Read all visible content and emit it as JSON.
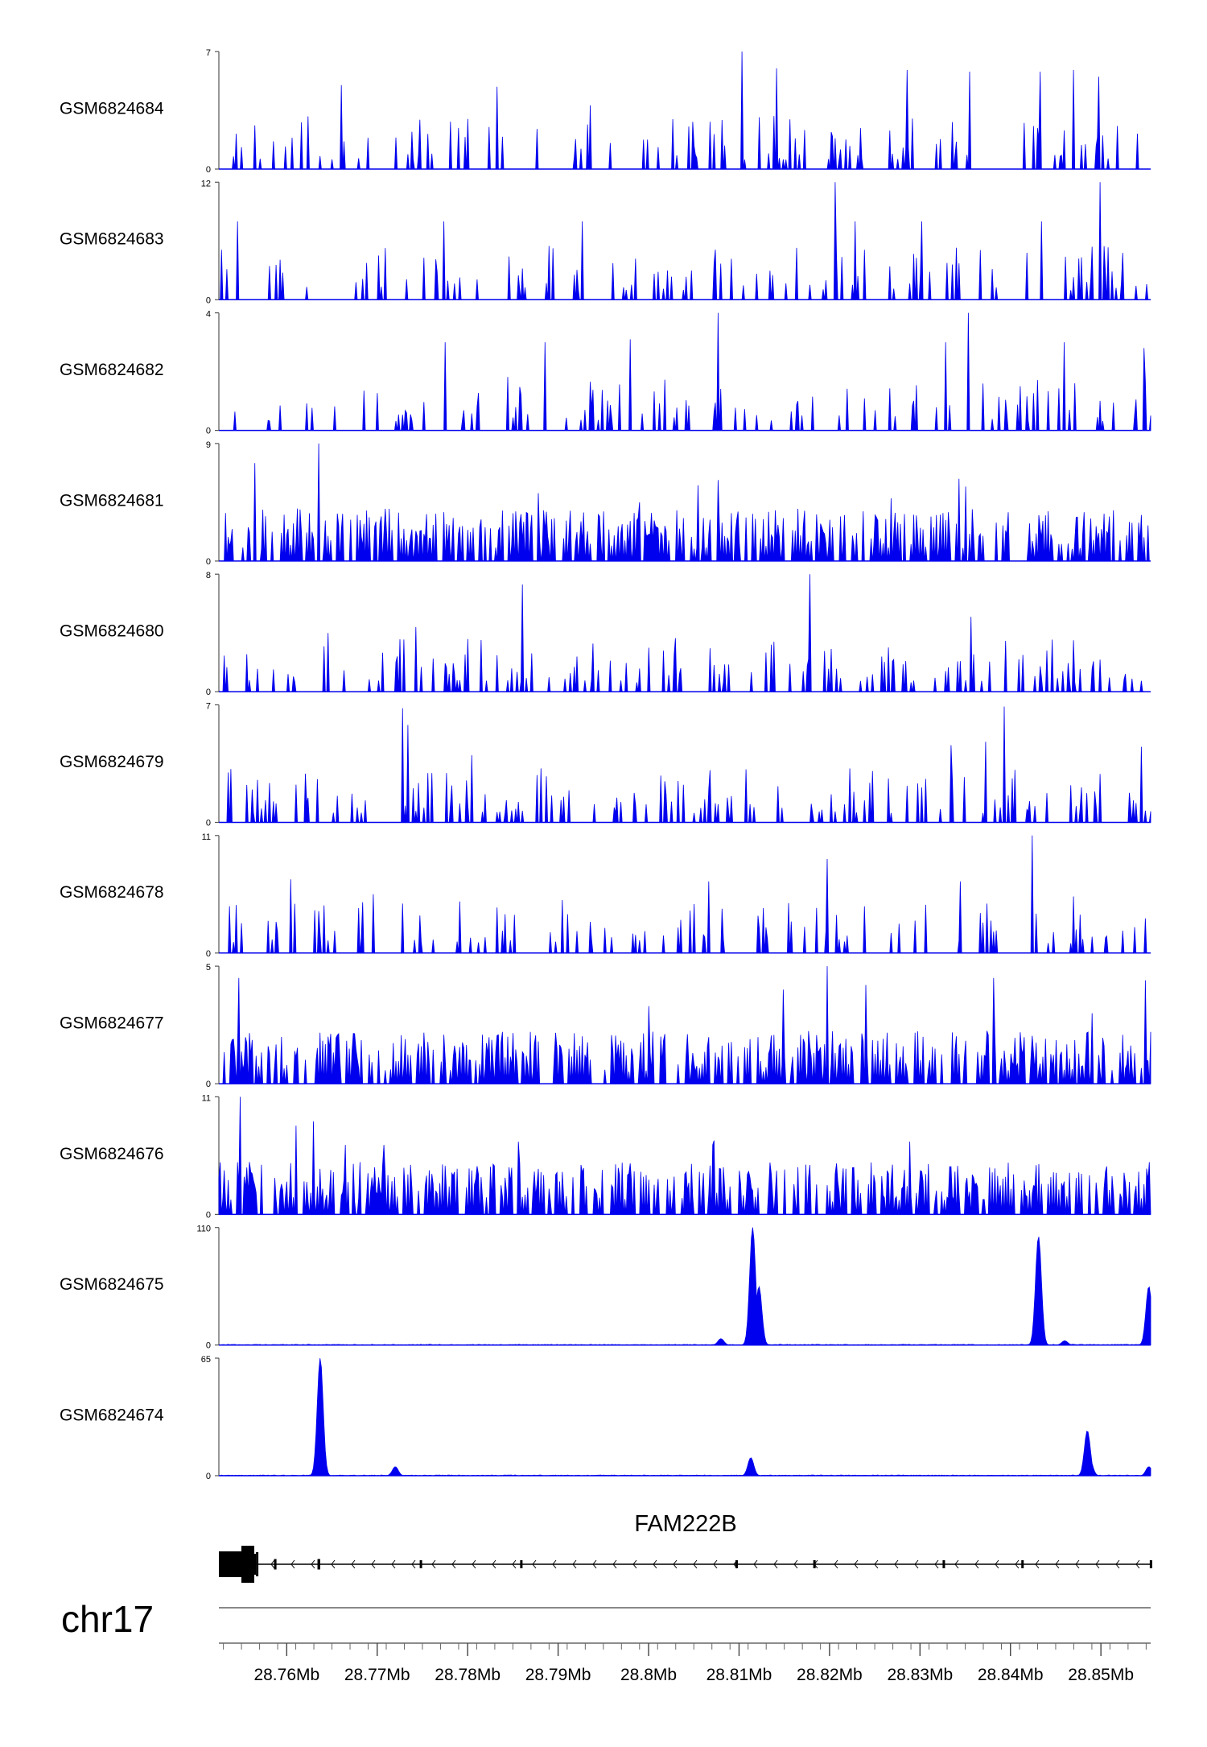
{
  "chart_data": {
    "type": "area",
    "title": "",
    "xlabel": "",
    "ylabel": "",
    "genome": "hg",
    "chromosome": "chr17",
    "xlim": [
      28.7525,
      28.8555
    ],
    "x_unit": "Mb",
    "x_ticks": [
      "28.76Mb",
      "28.77Mb",
      "28.78Mb",
      "28.79Mb",
      "28.8Mb",
      "28.81Mb",
      "28.82Mb",
      "28.83Mb",
      "28.84Mb",
      "28.85Mb"
    ],
    "x_tick_values": [
      28.76,
      28.77,
      28.78,
      28.79,
      28.8,
      28.81,
      28.82,
      28.83,
      28.84,
      28.85
    ],
    "color": "#0000ee",
    "tracks": [
      {
        "name": "GSM6824684",
        "ymax": 7,
        "ymin_label": "0",
        "ymax_label": "7",
        "profile": "sparse",
        "peaks": [
          [
            28.7935,
            3.8
          ],
          [
            28.8103,
            7.0
          ],
          [
            28.8142,
            6.0
          ],
          [
            28.8285,
            5.9
          ],
          [
            28.8355,
            5.8
          ],
          [
            28.8433,
            5.8
          ],
          [
            28.8469,
            5.9
          ],
          [
            28.8498,
            5.5
          ],
          [
            28.766,
            5.0
          ],
          [
            28.7832,
            4.9
          ]
        ]
      },
      {
        "name": "GSM6824683",
        "ymax": 12,
        "ymin_label": "0",
        "ymax_label": "12",
        "profile": "sparse",
        "peaks": [
          [
            28.8207,
            12.0
          ],
          [
            28.8499,
            12.0
          ],
          [
            28.7927,
            8.0
          ],
          [
            28.8302,
            8.0
          ],
          [
            28.8434,
            8.0
          ],
          [
            28.8229,
            8.0
          ],
          [
            28.7773,
            8.0
          ],
          [
            28.7545,
            8.0
          ]
        ]
      },
      {
        "name": "GSM6824682",
        "ymax": 4,
        "ymin_label": "0",
        "ymax_label": "4",
        "profile": "sparse",
        "peaks": [
          [
            28.8354,
            4.0
          ],
          [
            28.8077,
            4.0
          ],
          [
            28.798,
            3.1
          ],
          [
            28.8328,
            3.0
          ],
          [
            28.7775,
            3.0
          ],
          [
            28.7885,
            3.0
          ],
          [
            28.8459,
            3.0
          ],
          [
            28.8547,
            2.8
          ]
        ]
      },
      {
        "name": "GSM6824681",
        "ymax": 9,
        "ymin_label": "0",
        "ymax_label": "9",
        "profile": "dense",
        "peaks": [
          [
            28.7635,
            9.0
          ],
          [
            28.7565,
            7.5
          ],
          [
            28.8077,
            6.2
          ],
          [
            28.8343,
            6.3
          ],
          [
            28.835,
            5.7
          ],
          [
            28.8055,
            5.8
          ],
          [
            28.799,
            4.5
          ],
          [
            28.7878,
            5.2
          ],
          [
            28.8165,
            4.0
          ],
          [
            28.8268,
            4.8
          ]
        ]
      },
      {
        "name": "GSM6824680",
        "ymax": 8,
        "ymin_label": "0",
        "ymax_label": "8",
        "profile": "sparse",
        "peaks": [
          [
            28.8178,
            8.0
          ],
          [
            28.786,
            7.3
          ],
          [
            28.8356,
            5.1
          ],
          [
            28.847,
            3.5
          ],
          [
            28.7645,
            4.0
          ],
          [
            28.7743,
            4.4
          ],
          [
            28.8,
            3.0
          ]
        ]
      },
      {
        "name": "GSM6824679",
        "ymax": 7,
        "ymin_label": "0",
        "ymax_label": "7",
        "profile": "sparse",
        "peaks": [
          [
            28.8393,
            6.9
          ],
          [
            28.7728,
            6.8
          ],
          [
            28.7734,
            5.8
          ],
          [
            28.8373,
            4.8
          ],
          [
            28.8334,
            4.6
          ],
          [
            28.7805,
            4.0
          ],
          [
            28.8545,
            4.5
          ]
        ]
      },
      {
        "name": "GSM6824678",
        "ymax": 11,
        "ymin_label": "0",
        "ymax_label": "11",
        "profile": "sparse",
        "peaks": [
          [
            28.8424,
            11.0
          ],
          [
            28.8197,
            8.8
          ],
          [
            28.7605,
            6.9
          ],
          [
            28.8067,
            6.7
          ],
          [
            28.8344,
            6.7
          ],
          [
            28.847,
            5.3
          ],
          [
            28.7695,
            5.5
          ]
        ]
      },
      {
        "name": "GSM6824677",
        "ymax": 5,
        "ymin_label": "0",
        "ymax_label": "5",
        "profile": "dense",
        "peaks": [
          [
            28.8197,
            5.0
          ],
          [
            28.7547,
            4.5
          ],
          [
            28.824,
            4.2
          ],
          [
            28.8381,
            4.5
          ],
          [
            28.8549,
            4.4
          ],
          [
            28.8149,
            4.0
          ],
          [
            28.8,
            3.3
          ],
          [
            28.849,
            3.0
          ]
        ]
      },
      {
        "name": "GSM6824676",
        "ymax": 11,
        "ymin_label": "0",
        "ymax_label": "11",
        "profile": "dense",
        "peaks": [
          [
            28.7548,
            11.0
          ],
          [
            28.7611,
            8.3
          ],
          [
            28.763,
            8.7
          ],
          [
            28.7665,
            6.5
          ],
          [
            28.7708,
            6.5
          ],
          [
            28.7856,
            6.8
          ],
          [
            28.8073,
            6.9
          ],
          [
            28.8288,
            6.8
          ],
          [
            28.8071,
            6.5
          ]
        ]
      },
      {
        "name": "GSM6824675",
        "ymax": 110,
        "ymin_label": "0",
        "ymax_label": "110",
        "profile": "peaky",
        "peaks": [
          [
            28.8115,
            110
          ],
          [
            28.8122,
            55
          ],
          [
            28.8431,
            102
          ],
          [
            28.8553,
            55
          ],
          [
            28.808,
            6
          ],
          [
            28.846,
            4
          ]
        ]
      },
      {
        "name": "GSM6824674",
        "ymax": 65,
        "ymin_label": "0",
        "ymax_label": "65",
        "profile": "peaky",
        "peaks": [
          [
            28.7637,
            65
          ],
          [
            28.8485,
            25
          ],
          [
            28.8488,
            8
          ],
          [
            28.8553,
            5
          ],
          [
            28.8113,
            10
          ],
          [
            28.772,
            5
          ]
        ]
      }
    ],
    "gene": {
      "name": "FAM222B",
      "strand": "-",
      "start": 28.7525,
      "end": 28.8555,
      "exons": [
        [
          28.7525,
          28.7566
        ],
        [
          28.7566,
          28.7566
        ],
        [
          28.7586,
          28.7587
        ],
        [
          28.7634,
          28.7637
        ],
        [
          28.7747,
          28.7748
        ],
        [
          28.7858,
          28.7859
        ],
        [
          28.8096,
          28.8098
        ],
        [
          28.8182,
          28.8183
        ],
        [
          28.8325,
          28.8326
        ],
        [
          28.8412,
          28.8414
        ],
        [
          28.8554,
          28.8555
        ]
      ]
    }
  }
}
